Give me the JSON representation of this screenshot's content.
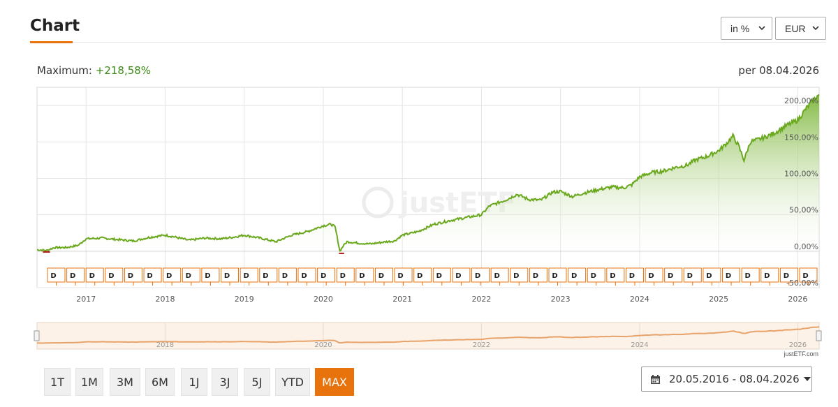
{
  "header": {
    "title": "Chart",
    "unit_select": "in %",
    "currency_select": "EUR"
  },
  "summary": {
    "maximum_label": "Maximum:",
    "maximum_value": "+218,58%",
    "as_of": "per 08.04.2026"
  },
  "colors": {
    "accent": "#e8720c",
    "line": "#6aa81e",
    "line_dip": "#b01010",
    "max_value": "#3d8a17",
    "area_top": "#7db63a",
    "navigator_line": "#e8a36a",
    "navigator_bg": "#fdf2e8"
  },
  "chart_data": {
    "type": "area",
    "x_unit": "year",
    "y_unit": "%",
    "ylim": [
      -50,
      225
    ],
    "xlim": [
      2016.38,
      2026.27
    ],
    "yticks": [
      "0,00%",
      "50,00%",
      "100,00%",
      "150,00%",
      "200,00%",
      "-50,00%"
    ],
    "ytick_values": [
      0,
      50,
      100,
      150,
      200,
      -50
    ],
    "xticks": [
      "2017",
      "2018",
      "2019",
      "2020",
      "2021",
      "2022",
      "2023",
      "2024",
      "2025",
      "2026"
    ],
    "xtick_values": [
      2017,
      2018,
      2019,
      2020,
      2021,
      2022,
      2023,
      2024,
      2025,
      2026
    ],
    "grid": true,
    "watermark": "justETF",
    "series": [
      {
        "x": [
          2016.38,
          2016.5,
          2016.6,
          2016.75,
          2016.9,
          2017.0,
          2017.2,
          2017.4,
          2017.6,
          2017.8,
          2018.0,
          2018.1,
          2018.3,
          2018.5,
          2018.7,
          2018.85,
          2019.0,
          2019.2,
          2019.4,
          2019.6,
          2019.8,
          2020.0,
          2020.1,
          2020.15,
          2020.21,
          2020.25,
          2020.3,
          2020.45,
          2020.6,
          2020.8,
          2020.9,
          2021.0,
          2021.2,
          2021.4,
          2021.6,
          2021.8,
          2022.0,
          2022.1,
          2022.3,
          2022.45,
          2022.6,
          2022.75,
          2022.9,
          2023.0,
          2023.15,
          2023.3,
          2023.5,
          2023.65,
          2023.8,
          2023.9,
          2024.0,
          2024.15,
          2024.3,
          2024.45,
          2024.6,
          2024.7,
          2024.85,
          2025.0,
          2025.1,
          2025.18,
          2025.25,
          2025.32,
          2025.4,
          2025.55,
          2025.7,
          2025.85,
          2026.0,
          2026.1,
          2026.2,
          2026.27
        ],
        "y": [
          2,
          1,
          5,
          5,
          8,
          17,
          18,
          16,
          14,
          19,
          22,
          20,
          15,
          18,
          17,
          19,
          22,
          18,
          13,
          22,
          27,
          35,
          37,
          33,
          0,
          7,
          13,
          11,
          10,
          13,
          14,
          22,
          27,
          37,
          42,
          46,
          50,
          62,
          70,
          78,
          71,
          70,
          81,
          82,
          75,
          80,
          85,
          88,
          87,
          91,
          102,
          108,
          110,
          115,
          118,
          125,
          130,
          138,
          148,
          158,
          145,
          125,
          150,
          155,
          162,
          172,
          180,
          195,
          208,
          215
        ]
      }
    ],
    "markers": {
      "label": "D",
      "count": 40
    },
    "navigator": {
      "xticks": [
        "2018",
        "2020",
        "2022",
        "2024",
        "2026"
      ],
      "xtick_values": [
        2018,
        2020,
        2022,
        2024,
        2026
      ]
    }
  },
  "range_buttons": [
    "1T",
    "1M",
    "3M",
    "6M",
    "1J",
    "3J",
    "5J",
    "YTD",
    "MAX"
  ],
  "active_range": "MAX",
  "date_range": "20.05.2016 - 08.04.2026",
  "credit": "justETF.com"
}
